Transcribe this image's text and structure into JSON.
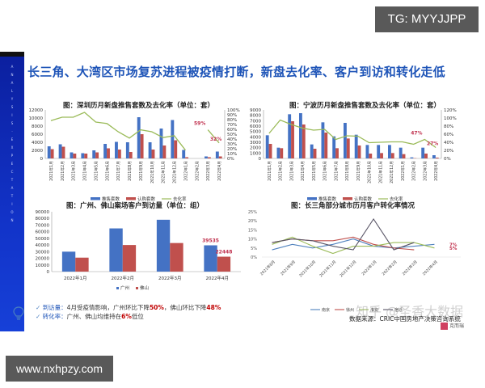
{
  "badges": {
    "tg": "TG: MYYJJPP",
    "url": "www.nxhpzy.com"
  },
  "slide": {
    "title": "长三角、大湾区市场复苏进程被疫情打断，新盘去化率、客户到访和转化走低",
    "side_text": "ANALYSIS · EXPECTATION",
    "notes": {
      "line1_key": "到访量：",
      "line1_text_a": "4月受疫情影响，广州环比下降",
      "line1_red_a": "50%",
      "line1_text_b": "，佛山环比下降",
      "line1_red_b": "48%",
      "line2_key": "转化率：",
      "line2_text_a": "广州、佛山均维持在",
      "line2_red_a": "6%",
      "line2_text_b": "低位"
    },
    "source": "数据来源：CRIC中国房地产决策咨询系统",
    "watermark": "知乎 @圣香大数据",
    "logo_text": "克而瑞"
  },
  "chart_data": [
    {
      "type": "bar",
      "title": "图：深圳历月新盘推售套数及去化率（单位：套）",
      "categories": [
        "2021年1月",
        "2021年2月",
        "2021年3月",
        "2021年4月",
        "2021年5月",
        "2021年6月",
        "2021年7月",
        "2021年8月",
        "2021年9月",
        "2021年10月",
        "2021年11月",
        "2021年12月",
        "2022年1月",
        "2022年2月",
        "2022年3月",
        "2022年4月"
      ],
      "series": [
        {
          "name": "推售套数",
          "type": "bar",
          "color": "#4472c4",
          "values": [
            3000,
            3500,
            1500,
            1300,
            2000,
            3600,
            4100,
            4000,
            10200,
            4000,
            7400,
            9500,
            2100,
            0,
            500,
            1700
          ]
        },
        {
          "name": "认购套数",
          "type": "bar",
          "color": "#c0504d",
          "values": [
            2300,
            2900,
            1200,
            1200,
            1500,
            2500,
            2200,
            1600,
            6000,
            2200,
            3200,
            4500,
            300,
            0,
            300,
            500
          ]
        },
        {
          "name": "去化率",
          "type": "line",
          "axis": "right",
          "color": "#9bbb59",
          "values": [
            0.78,
            0.85,
            0.85,
            0.95,
            0.75,
            0.72,
            0.55,
            0.42,
            0.59,
            0.55,
            0.43,
            0.47,
            0.17,
            null,
            0.59,
            0.32
          ]
        }
      ],
      "annotations": [
        {
          "label": "59%",
          "index": 14
        },
        {
          "label": "32%",
          "index": 15
        }
      ],
      "ylim": [
        0,
        12000
      ],
      "yticks": [
        0,
        2000,
        4000,
        6000,
        8000,
        10000,
        12000
      ],
      "y2lim": [
        0,
        1.0
      ],
      "y2ticks": [
        "0%",
        "10%",
        "20%",
        "30%",
        "40%",
        "50%",
        "60%",
        "70%",
        "80%",
        "90%",
        "100%"
      ],
      "legend": [
        "推售套数",
        "认购套数",
        "去化率"
      ]
    },
    {
      "type": "bar",
      "title": "图：宁波历月新盘推售套数及去化率（单位：套）",
      "categories": [
        "2021年1月",
        "2021年2月",
        "2021年3月",
        "2021年4月",
        "2021年5月",
        "2021年6月",
        "2021年7月",
        "2021年8月",
        "2021年9月",
        "2021年10月",
        "2021年11月",
        "2021年12月",
        "2022年1月",
        "2022年2月",
        "2022年3月",
        "2022年4月"
      ],
      "series": [
        {
          "name": "推售套数",
          "type": "bar",
          "color": "#4472c4",
          "values": [
            4300,
            2000,
            8200,
            8400,
            2600,
            6700,
            4100,
            6600,
            4400,
            2500,
            2500,
            2500,
            2000,
            200,
            2000,
            600
          ]
        },
        {
          "name": "认购套数",
          "type": "bar",
          "color": "#c0504d",
          "values": [
            2700,
            1900,
            6900,
            6300,
            1800,
            4800,
            1900,
            3700,
            2400,
            900,
            1000,
            1000,
            800,
            50,
            900,
            150
          ]
        },
        {
          "name": "去化率",
          "type": "line",
          "axis": "right",
          "color": "#9bbb59",
          "values": [
            0.62,
            0.95,
            0.84,
            0.75,
            0.7,
            0.72,
            0.47,
            0.56,
            0.55,
            0.39,
            0.4,
            0.41,
            0.41,
            0.35,
            0.47,
            0.27
          ]
        }
      ],
      "annotations": [
        {
          "label": "47%",
          "index": 14
        },
        {
          "label": "27%",
          "index": 15
        }
      ],
      "ylim": [
        0,
        9000
      ],
      "yticks": [
        0,
        1000,
        2000,
        3000,
        4000,
        5000,
        6000,
        7000,
        8000,
        9000
      ],
      "y2lim": [
        0,
        1.2
      ],
      "y2ticks": [
        "0%",
        "20%",
        "40%",
        "60%",
        "80%",
        "100%",
        "120%"
      ],
      "legend": [
        "推售套数",
        "认购套数",
        "去化率"
      ]
    },
    {
      "type": "bar",
      "title": "图：广州、佛山案场客户到访量（单位：组）",
      "categories": [
        "2022年1月",
        "2022年2月",
        "2022年3月",
        "2022年4月"
      ],
      "series": [
        {
          "name": "广州",
          "color": "#4472c4",
          "values": [
            30000,
            65000,
            78000,
            39535
          ]
        },
        {
          "name": "佛山",
          "color": "#c0504d",
          "values": [
            21000,
            40000,
            43000,
            22448
          ]
        }
      ],
      "annotations": [
        {
          "label": "39535",
          "series": 0,
          "index": 3
        },
        {
          "label": "22448",
          "series": 1,
          "index": 3
        }
      ],
      "ylim": [
        0,
        90000
      ],
      "yticks": [
        0,
        10000,
        20000,
        30000,
        40000,
        50000,
        60000,
        70000,
        80000,
        90000
      ],
      "legend": [
        "广州",
        "佛山"
      ]
    },
    {
      "type": "line",
      "title": "图：长三角部分城市历月客户转化率情况",
      "categories": [
        "2021年8月",
        "2021年9月",
        "2021年10月",
        "2021年11月",
        "2021年12月",
        "2022年1月",
        "2022年2月",
        "2022年3月",
        "2022年4月"
      ],
      "series": [
        {
          "name": "南京",
          "color": "#4f81bd",
          "values": [
            0.04,
            0.07,
            0.05,
            0.07,
            0.1,
            0.06,
            0.05,
            0.06,
            0.07
          ]
        },
        {
          "name": "徐州",
          "color": "#c0504d",
          "values": [
            0.08,
            0.1,
            0.09,
            0.09,
            0.11,
            0.07,
            0.05,
            0.04,
            null
          ]
        },
        {
          "name": "淮安",
          "color": "#9bbb59",
          "values": [
            0.07,
            0.11,
            0.06,
            0.02,
            0.06,
            0.06,
            0.08,
            0.08,
            0.05
          ]
        },
        {
          "name": "宿迁",
          "color": "#595566",
          "values": [
            0.08,
            0.1,
            0.09,
            0.06,
            0.04,
            0.21,
            0.04,
            0.08,
            null
          ]
        }
      ],
      "annotations": [
        {
          "label": "7%",
          "index": 8
        },
        {
          "label": "5%",
          "index": 8
        }
      ],
      "ylim": [
        0,
        0.25
      ],
      "yticks": [
        "0%",
        "5%",
        "10%",
        "15%",
        "20%",
        "25%"
      ],
      "legend": [
        "南京",
        "徐州",
        "淮安",
        "宿迁"
      ]
    }
  ]
}
